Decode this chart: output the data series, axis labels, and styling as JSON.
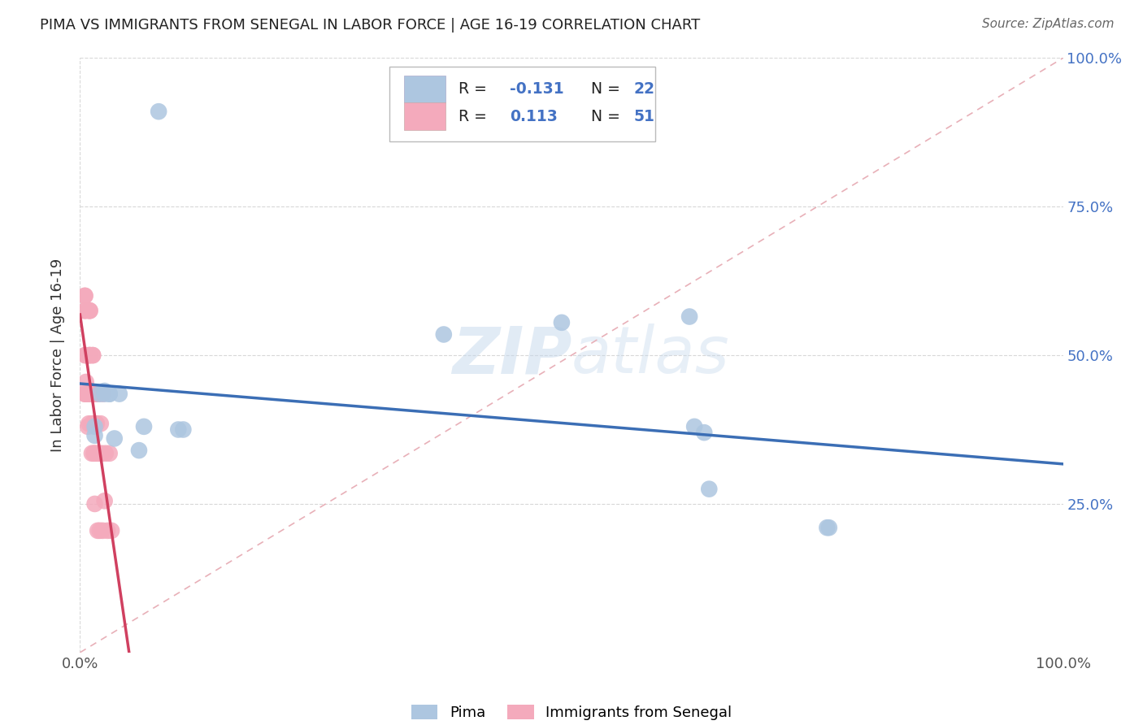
{
  "title": "PIMA VS IMMIGRANTS FROM SENEGAL IN LABOR FORCE | AGE 16-19 CORRELATION CHART",
  "source": "Source: ZipAtlas.com",
  "ylabel": "In Labor Force | Age 16-19",
  "xlim": [
    0.0,
    1.0
  ],
  "ylim": [
    0.0,
    1.0
  ],
  "pima_R": -0.131,
  "pima_N": 22,
  "senegal_R": 0.113,
  "senegal_N": 51,
  "pima_color": "#adc6e0",
  "senegal_color": "#f4aabc",
  "pima_line_color": "#3b6eb5",
  "senegal_line_color": "#d04060",
  "diagonal_color": "#e8b0b8",
  "background_color": "#ffffff",
  "grid_color": "#d8d8d8",
  "pima_x": [
    0.015,
    0.015,
    0.02,
    0.025,
    0.025,
    0.03,
    0.03,
    0.035,
    0.04,
    0.06,
    0.065,
    0.1,
    0.105,
    0.37,
    0.49,
    0.62,
    0.625,
    0.635,
    0.64,
    0.76,
    0.762,
    0.08
  ],
  "pima_y": [
    0.38,
    0.365,
    0.435,
    0.435,
    0.44,
    0.435,
    0.435,
    0.36,
    0.435,
    0.34,
    0.38,
    0.375,
    0.375,
    0.535,
    0.555,
    0.565,
    0.38,
    0.37,
    0.275,
    0.21,
    0.21,
    0.91
  ],
  "senegal_x": [
    0.005,
    0.005,
    0.005,
    0.005,
    0.005,
    0.005,
    0.005,
    0.006,
    0.006,
    0.006,
    0.008,
    0.009,
    0.009,
    0.009,
    0.009,
    0.009,
    0.009,
    0.01,
    0.01,
    0.01,
    0.01,
    0.012,
    0.012,
    0.012,
    0.012,
    0.013,
    0.013,
    0.014,
    0.014,
    0.014,
    0.014,
    0.015,
    0.015,
    0.015,
    0.015,
    0.016,
    0.017,
    0.017,
    0.018,
    0.018,
    0.019,
    0.02,
    0.021,
    0.022,
    0.023,
    0.023,
    0.025,
    0.026,
    0.028,
    0.03,
    0.032
  ],
  "senegal_y": [
    0.435,
    0.5,
    0.575,
    0.575,
    0.6,
    0.6,
    0.435,
    0.435,
    0.5,
    0.455,
    0.38,
    0.575,
    0.435,
    0.435,
    0.435,
    0.5,
    0.385,
    0.575,
    0.575,
    0.5,
    0.5,
    0.435,
    0.435,
    0.385,
    0.335,
    0.5,
    0.5,
    0.435,
    0.435,
    0.385,
    0.335,
    0.335,
    0.25,
    0.435,
    0.435,
    0.385,
    0.385,
    0.335,
    0.205,
    0.435,
    0.335,
    0.205,
    0.385,
    0.335,
    0.205,
    0.435,
    0.255,
    0.335,
    0.205,
    0.335,
    0.205
  ],
  "watermark_zip": "ZIP",
  "watermark_atlas": "atlas",
  "legend_label_pima": "Pima",
  "legend_label_senegal": "Immigrants from Senegal",
  "r_text_color": "#333333",
  "n_val_color": "#4472c4",
  "r_val_color": "#4472c4"
}
